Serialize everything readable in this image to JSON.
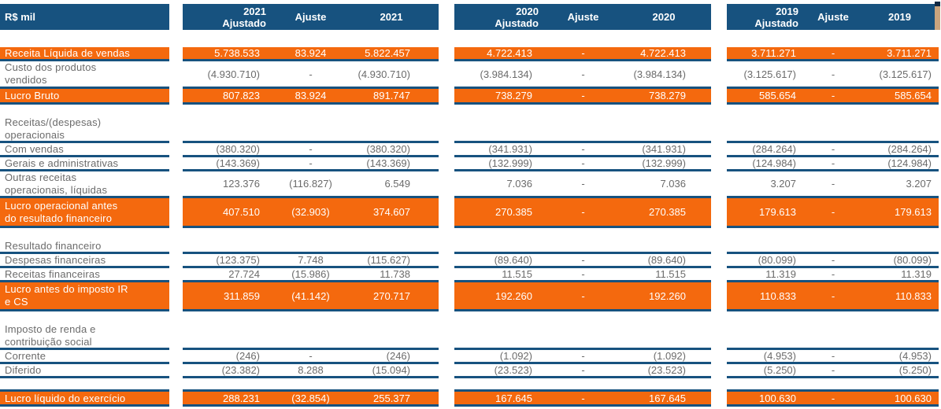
{
  "unit_label": "R$ mil",
  "colors": {
    "header_blue": "#17527F",
    "accent_orange": "#F4690E",
    "body_text": "#6b6b6b",
    "edge_tan": "#C9A47E"
  },
  "header": {
    "groups": [
      {
        "year": "2021",
        "adjusted_word": "Ajustado",
        "ajuste_word": "Ajuste"
      },
      {
        "year": "2020",
        "adjusted_word": "Ajustado",
        "ajuste_word": "Ajuste"
      },
      {
        "year": "2019",
        "adjusted_word": "Ajustado",
        "ajuste_word": "Ajuste"
      }
    ]
  },
  "rows": [
    {
      "label": "Receita Líquida de vendas",
      "type": "total",
      "values": [
        [
          "5.738.533",
          "83.924",
          "5.822.457"
        ],
        [
          "4.722.413",
          "-",
          "4.722.413"
        ],
        [
          "3.711.271",
          "-",
          "3.711.271"
        ]
      ]
    },
    {
      "label": "Custo dos produtos\nvendidos",
      "type": "data",
      "values": [
        [
          "(4.930.710)",
          "-",
          "(4.930.710)"
        ],
        [
          "(3.984.134)",
          "-",
          "(3.984.134)"
        ],
        [
          "(3.125.617)",
          "-",
          "(3.125.617)"
        ]
      ]
    },
    {
      "label": "Lucro Bruto",
      "type": "total",
      "values": [
        [
          "807.823",
          "83.924",
          "891.747"
        ],
        [
          "738.279",
          "-",
          "738.279"
        ],
        [
          "585.654",
          "-",
          "585.654"
        ]
      ]
    },
    {
      "label": "Receitas/(despesas)\noperacionais",
      "type": "section",
      "values": [
        [
          "",
          "",
          ""
        ],
        [
          "",
          "",
          ""
        ],
        [
          "",
          "",
          ""
        ]
      ]
    },
    {
      "label": "Com vendas",
      "type": "data",
      "values": [
        [
          "(380.320)",
          "-",
          "(380.320)"
        ],
        [
          "(341.931)",
          "-",
          "(341.931)"
        ],
        [
          "(284.264)",
          "-",
          "(284.264)"
        ]
      ]
    },
    {
      "label": "Gerais e administrativas",
      "type": "data",
      "values": [
        [
          "(143.369)",
          "-",
          "(143.369)"
        ],
        [
          "(132.999)",
          "-",
          "(132.999)"
        ],
        [
          "(124.984)",
          "-",
          "(124.984)"
        ]
      ]
    },
    {
      "label": "Outras receitas\noperacionais, líquidas",
      "type": "data",
      "values": [
        [
          "123.376",
          "(116.827)",
          "6.549"
        ],
        [
          "7.036",
          "-",
          "7.036"
        ],
        [
          "3.207",
          "-",
          "3.207"
        ]
      ]
    },
    {
      "label": "Lucro operacional antes\ndo resultado financeiro",
      "type": "total",
      "values": [
        [
          "407.510",
          "(32.903)",
          "374.607"
        ],
        [
          "270.385",
          "-",
          "270.385"
        ],
        [
          "179.613",
          "-",
          "179.613"
        ]
      ]
    },
    {
      "label": "Resultado financeiro",
      "type": "section",
      "values": [
        [
          "",
          "",
          ""
        ],
        [
          "",
          "",
          ""
        ],
        [
          "",
          "",
          ""
        ]
      ]
    },
    {
      "label": "Despesas financeiras",
      "type": "data",
      "values": [
        [
          "(123.375)",
          "7.748",
          "(115.627)"
        ],
        [
          "(89.640)",
          "-",
          "(89.640)"
        ],
        [
          "(80.099)",
          "-",
          "(80.099)"
        ]
      ]
    },
    {
      "label": "Receitas financeiras",
      "type": "data",
      "values": [
        [
          "27.724",
          "(15.986)",
          "11.738"
        ],
        [
          "11.515",
          "-",
          "11.515"
        ],
        [
          "11.319",
          "-",
          "11.319"
        ]
      ]
    },
    {
      "label": "Lucro antes do imposto IR\ne CS",
      "type": "total",
      "values": [
        [
          "311.859",
          "(41.142)",
          "270.717"
        ],
        [
          "192.260",
          "-",
          "192.260"
        ],
        [
          "110.833",
          "-",
          "110.833"
        ]
      ]
    },
    {
      "label": "Imposto de renda e\ncontribuição social",
      "type": "section",
      "values": [
        [
          "",
          "",
          ""
        ],
        [
          "",
          "",
          ""
        ],
        [
          "",
          "",
          ""
        ]
      ]
    },
    {
      "label": "Corrente",
      "type": "data",
      "values": [
        [
          "(246)",
          "-",
          "(246)"
        ],
        [
          "(1.092)",
          "-",
          "(1.092)"
        ],
        [
          "(4.953)",
          "-",
          "(4.953)"
        ]
      ]
    },
    {
      "label": "Diferido",
      "type": "data",
      "values": [
        [
          "(23.382)",
          "8.288",
          "(15.094)"
        ],
        [
          "(23.523)",
          "-",
          "(23.523)"
        ],
        [
          "(5.250)",
          "-",
          "(5.250)"
        ]
      ]
    },
    {
      "label": "Lucro líquido do exercício",
      "type": "total",
      "values": [
        [
          "288.231",
          "(32.854)",
          "255.377"
        ],
        [
          "167.645",
          "-",
          "167.645"
        ],
        [
          "100.630",
          "-",
          "100.630"
        ]
      ]
    }
  ]
}
